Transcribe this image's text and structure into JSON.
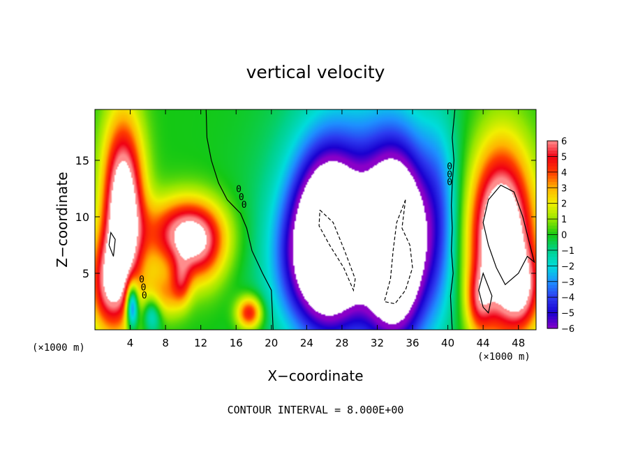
{
  "chart_data": {
    "type": "heatmap",
    "title": "vertical velocity",
    "xlabel": "X−coordinate",
    "ylabel": "Z−coordinate",
    "x_unit_left": "(×1000 m)",
    "x_unit_right": "(×1000 m)",
    "footer": "CONTOUR INTERVAL = 8.000E+00",
    "xlim": [
      0,
      50
    ],
    "ylim": [
      0,
      19.5
    ],
    "xticks": [
      4,
      8,
      12,
      16,
      20,
      24,
      28,
      32,
      36,
      40,
      44,
      48
    ],
    "yticks": [
      5,
      10,
      15
    ],
    "contour_label": "0",
    "colorbar": {
      "ticks": [
        6,
        5,
        4,
        3,
        2,
        1,
        0,
        -1,
        -2,
        -3,
        -4,
        -5,
        -6
      ],
      "tick_labels": [
        "6",
        "5",
        "4",
        "3",
        "2",
        "1",
        "0",
        "−1",
        "−2",
        "−3",
        "−4",
        "−5",
        "−6"
      ],
      "stops": [
        {
          "v": -6,
          "color": "#8a00c8"
        },
        {
          "v": -5,
          "color": "#1a00d0"
        },
        {
          "v": -4,
          "color": "#2c3cf0"
        },
        {
          "v": -3,
          "color": "#1e90ff"
        },
        {
          "v": -2,
          "color": "#00dcdc"
        },
        {
          "v": -1,
          "color": "#00d28c"
        },
        {
          "v": 0,
          "color": "#14c814"
        },
        {
          "v": 1,
          "color": "#96e600"
        },
        {
          "v": 2,
          "color": "#f0f000"
        },
        {
          "v": 3,
          "color": "#ffb400"
        },
        {
          "v": 4,
          "color": "#ff3c00"
        },
        {
          "v": 5,
          "color": "#f00014"
        },
        {
          "v": 6,
          "color": "#ff8c8c"
        }
      ],
      "above_max_color": "#ffffff",
      "below_min_color": "#ffffff"
    },
    "features": [
      {
        "kind": "updraft",
        "x": 3.2,
        "z": 10.5,
        "sx": 1.6,
        "sz": 5.5,
        "amp": 9
      },
      {
        "kind": "updraft",
        "x": 1.5,
        "z": 4.0,
        "sx": 1.6,
        "sz": 3.0,
        "amp": 5
      },
      {
        "kind": "updraft",
        "x": 10.0,
        "z": 8.5,
        "sx": 3.0,
        "sz": 2.2,
        "amp": 6
      },
      {
        "kind": "updraft",
        "x": 12.0,
        "z": 7.0,
        "sx": 2.0,
        "sz": 2.5,
        "amp": 3
      },
      {
        "kind": "updraft",
        "x": 9.8,
        "z": 4.2,
        "sx": 0.8,
        "sz": 1.5,
        "amp": 3
      },
      {
        "kind": "updraft",
        "x": 7.5,
        "z": 3.0,
        "sx": 1.5,
        "sz": 1.5,
        "amp": 3
      },
      {
        "kind": "updraft",
        "x": 17.5,
        "z": 1.5,
        "sx": 1.0,
        "sz": 1.0,
        "amp": 5
      },
      {
        "kind": "updraft",
        "x": 46.0,
        "z": 8.0,
        "sx": 2.5,
        "sz": 5.5,
        "amp": 10
      },
      {
        "kind": "updraft",
        "x": 48.5,
        "z": 3.5,
        "sx": 1.5,
        "sz": 2.5,
        "amp": 4
      },
      {
        "kind": "updraft",
        "x": 43.5,
        "z": 2.5,
        "sx": 1.0,
        "sz": 2.0,
        "amp": 3
      },
      {
        "kind": "downdraft",
        "x": 26.5,
        "z": 8.0,
        "sx": 2.6,
        "sz": 5.0,
        "amp": -10
      },
      {
        "kind": "downdraft",
        "x": 34.0,
        "z": 7.5,
        "sx": 2.4,
        "sz": 5.5,
        "amp": -10
      },
      {
        "kind": "downdraft",
        "x": 30.5,
        "z": 9.0,
        "sx": 6.5,
        "sz": 8.0,
        "amp": -4
      },
      {
        "kind": "downdraft",
        "x": 23.0,
        "z": 6.0,
        "sx": 2.5,
        "sz": 4.0,
        "amp": -2
      },
      {
        "kind": "downdraft",
        "x": 4.2,
        "z": 2.2,
        "sx": 0.5,
        "sz": 1.5,
        "amp": -6
      },
      {
        "kind": "downdraft",
        "x": 6.5,
        "z": 1.5,
        "sx": 0.8,
        "sz": 1.2,
        "amp": -3
      },
      {
        "kind": "downdraft",
        "x": 39.0,
        "z": 10.0,
        "sx": 1.5,
        "sz": 6.0,
        "amp": -2
      }
    ],
    "contours": [
      {
        "style": "solid",
        "points": [
          [
            12.6,
            19.5
          ],
          [
            12.7,
            17.0
          ],
          [
            13.2,
            15.0
          ],
          [
            14.0,
            13.0
          ],
          [
            15.0,
            11.5
          ],
          [
            16.5,
            10.3
          ],
          [
            17.2,
            9.0
          ],
          [
            17.8,
            7.0
          ],
          [
            19.0,
            5.0
          ],
          [
            20.0,
            3.5
          ],
          [
            20.2,
            0
          ]
        ]
      },
      {
        "style": "solid",
        "points": [
          [
            40.8,
            19.5
          ],
          [
            40.5,
            17.0
          ],
          [
            40.7,
            15.0
          ],
          [
            40.5,
            13.0
          ],
          [
            40.4,
            11.0
          ],
          [
            40.5,
            9.0
          ],
          [
            40.4,
            7.0
          ],
          [
            40.6,
            5.0
          ],
          [
            40.3,
            3.0
          ],
          [
            40.5,
            0
          ]
        ]
      },
      {
        "style": "solid",
        "points": [
          [
            44.6,
            7.5
          ],
          [
            44.0,
            9.5
          ],
          [
            44.6,
            11.5
          ],
          [
            46.0,
            12.8
          ],
          [
            47.5,
            12.2
          ],
          [
            48.5,
            10.0
          ],
          [
            49.3,
            7.5
          ],
          [
            49.8,
            6.0
          ],
          [
            49.0,
            6.5
          ],
          [
            48.0,
            5.0
          ],
          [
            46.5,
            4.0
          ],
          [
            45.5,
            5.5
          ],
          [
            44.6,
            7.5
          ]
        ]
      },
      {
        "style": "solid",
        "points": [
          [
            44.0,
            2.0
          ],
          [
            43.5,
            3.5
          ],
          [
            44.0,
            5.0
          ],
          [
            45.0,
            3.0
          ],
          [
            44.6,
            1.5
          ],
          [
            44.0,
            2.0
          ]
        ]
      },
      {
        "style": "solid",
        "points": [
          [
            1.6,
            7.5
          ],
          [
            1.8,
            8.6
          ],
          [
            2.3,
            8.0
          ],
          [
            2.1,
            6.5
          ],
          [
            1.6,
            7.5
          ]
        ]
      },
      {
        "style": "dashed",
        "points": [
          [
            25.5,
            10.6
          ],
          [
            27.0,
            9.5
          ],
          [
            28.3,
            7.0
          ],
          [
            29.5,
            4.5
          ],
          [
            29.3,
            3.5
          ],
          [
            28.2,
            5.5
          ],
          [
            26.6,
            7.5
          ],
          [
            25.4,
            9.2
          ],
          [
            25.5,
            10.6
          ]
        ]
      },
      {
        "style": "dashed",
        "points": [
          [
            35.2,
            11.5
          ],
          [
            34.8,
            9.0
          ],
          [
            35.7,
            7.5
          ],
          [
            36.0,
            5.5
          ],
          [
            35.2,
            3.5
          ],
          [
            34.0,
            2.3
          ],
          [
            32.8,
            2.5
          ],
          [
            33.5,
            4.5
          ],
          [
            33.8,
            7.0
          ],
          [
            34.2,
            9.5
          ],
          [
            35.2,
            11.5
          ]
        ]
      }
    ],
    "contour_labels": [
      {
        "x": 16.3,
        "z": 12.5
      },
      {
        "x": 16.6,
        "z": 11.8
      },
      {
        "x": 16.9,
        "z": 11.1
      },
      {
        "x": 40.2,
        "z": 14.5
      },
      {
        "x": 40.2,
        "z": 13.8
      },
      {
        "x": 40.2,
        "z": 13.1
      },
      {
        "x": 5.3,
        "z": 4.5
      },
      {
        "x": 5.5,
        "z": 3.8
      },
      {
        "x": 5.6,
        "z": 3.1
      }
    ],
    "grid": false,
    "legend": "right colorbar"
  }
}
